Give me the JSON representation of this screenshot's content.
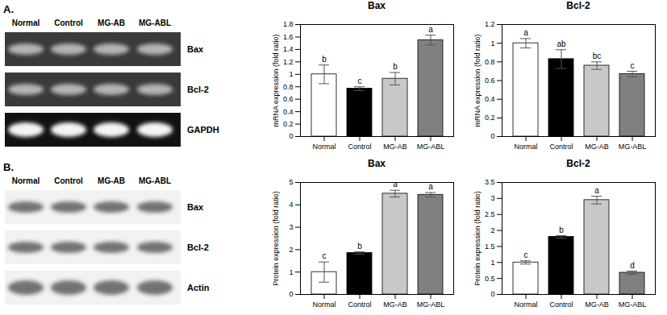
{
  "chart_data": [
    {
      "type": "bar",
      "title": "Bax",
      "ylabel": "mRNA expression (fold ratio)",
      "categories": [
        "Normal",
        "Control",
        "MG-AB",
        "MG-ABL"
      ],
      "values": [
        1.0,
        0.77,
        0.93,
        1.55
      ],
      "errors": [
        0.15,
        0.03,
        0.1,
        0.08
      ],
      "annotations": [
        "b",
        "c",
        "b",
        "a"
      ],
      "colors": [
        "#ffffff",
        "#000000",
        "#c8c8c8",
        "#808080"
      ],
      "ylim": [
        0,
        1.8
      ],
      "yticks": [
        0,
        0.2,
        0.4,
        0.6,
        0.8,
        1,
        1.2,
        1.4,
        1.6,
        1.8
      ]
    },
    {
      "type": "bar",
      "title": "Bcl-2",
      "ylabel": "mRNA expression (fold ratio)",
      "categories": [
        "Normal",
        "Control",
        "MG-AB",
        "MG-ABL"
      ],
      "values": [
        1.0,
        0.83,
        0.76,
        0.67
      ],
      "errors": [
        0.05,
        0.1,
        0.04,
        0.03
      ],
      "annotations": [
        "a",
        "ab",
        "bc",
        "c"
      ],
      "colors": [
        "#ffffff",
        "#000000",
        "#c8c8c8",
        "#808080"
      ],
      "ylim": [
        0,
        1.2
      ],
      "yticks": [
        0,
        0.2,
        0.4,
        0.6,
        0.8,
        1,
        1.2
      ]
    },
    {
      "type": "bar",
      "title": "Bax",
      "ylabel": "Protein expression (fold ratio)",
      "categories": [
        "Normal",
        "Control",
        "MG-AB",
        "MG-ABL"
      ],
      "values": [
        1.0,
        1.85,
        4.5,
        4.45
      ],
      "errors": [
        0.45,
        0.05,
        0.15,
        0.1
      ],
      "annotations": [
        "c",
        "b",
        "a",
        "a"
      ],
      "colors": [
        "#ffffff",
        "#000000",
        "#c8c8c8",
        "#808080"
      ],
      "ylim": [
        0,
        5
      ],
      "yticks": [
        0,
        1,
        2,
        3,
        4,
        5
      ]
    },
    {
      "type": "bar",
      "title": "Bcl-2",
      "ylabel": "Protein expression (fold ratio)",
      "categories": [
        "Normal",
        "Control",
        "MG-AB",
        "MG-ABL"
      ],
      "values": [
        1.0,
        1.8,
        2.95,
        0.68
      ],
      "errors": [
        0.05,
        0.04,
        0.12,
        0.05
      ],
      "annotations": [
        "c",
        "b",
        "a",
        "d"
      ],
      "colors": [
        "#ffffff",
        "#000000",
        "#c8c8c8",
        "#808080"
      ],
      "ylim": [
        0,
        3.5
      ],
      "yticks": [
        0,
        0.5,
        1,
        1.5,
        2,
        2.5,
        3,
        3.5
      ]
    }
  ],
  "gels": [
    {
      "panel": "A.",
      "lanes": [
        "Normal",
        "Control",
        "MG-AB",
        "MG-ABL"
      ],
      "bands": [
        "Bax",
        "Bcl-2",
        "GAPDH"
      ]
    },
    {
      "panel": "B.",
      "lanes": [
        "Normal",
        "Control",
        "MG-AB",
        "MG-ABL"
      ],
      "bands": [
        "Bax",
        "Bcl-2",
        "Actin"
      ]
    }
  ]
}
